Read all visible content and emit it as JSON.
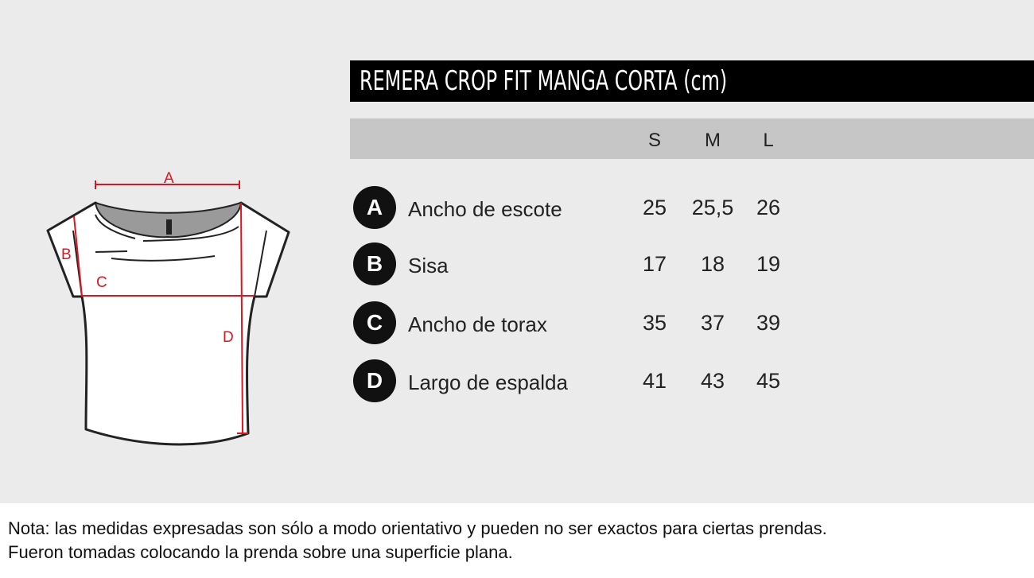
{
  "title": "REMERA CROP FIT MANGA CORTA (cm)",
  "sizes": [
    "S",
    "M",
    "L"
  ],
  "rows": [
    {
      "letter": "A",
      "label": "Ancho de escote",
      "values": [
        "25",
        "25,5",
        "26"
      ]
    },
    {
      "letter": "B",
      "label": "Sisa",
      "values": [
        "17",
        "18",
        "19"
      ]
    },
    {
      "letter": "C",
      "label": "Ancho de torax",
      "values": [
        "35",
        "37",
        "39"
      ]
    },
    {
      "letter": "D",
      "label": "Largo de espalda",
      "values": [
        "41",
        "43",
        "45"
      ]
    }
  ],
  "diagram": {
    "labels": [
      "A",
      "B",
      "C",
      "D"
    ],
    "measure_color": "#e0141e"
  },
  "note": [
    "Nota: las medidas expresadas son sólo a modo orientativo y pueden no ser exactos para ciertas prendas.",
    "Fueron tomadas colocando la prenda sobre una superficie plana."
  ]
}
